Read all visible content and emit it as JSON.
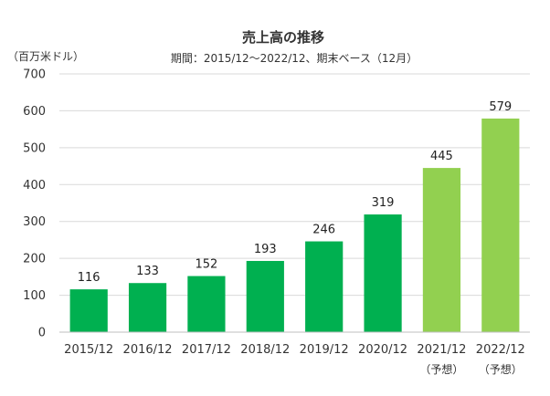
{
  "chart_data": {
    "type": "bar",
    "title": "売上高の推移",
    "subtitle": "期間：2015/12～2022/12、期末ベース（12月）",
    "unit_label": "（百万米ドル）",
    "categories": [
      "2015/12",
      "2016/12",
      "2017/12",
      "2018/12",
      "2019/12",
      "2020/12",
      "2021/12",
      "2022/12"
    ],
    "category_notes": [
      "",
      "",
      "",
      "",
      "",
      "",
      "（予想）",
      "（予想）"
    ],
    "values": [
      116,
      133,
      152,
      193,
      246,
      319,
      445,
      579
    ],
    "value_labels": [
      "116",
      "133",
      "152",
      "193",
      "246",
      "319",
      "445",
      "579"
    ],
    "bar_colors": [
      "#00b050",
      "#00b050",
      "#00b050",
      "#00b050",
      "#00b050",
      "#00b050",
      "#92d050",
      "#92d050"
    ],
    "ylim": [
      0,
      700
    ],
    "yticks": [
      0,
      100,
      200,
      300,
      400,
      500,
      600,
      700
    ],
    "ytick_labels": [
      "0",
      "100",
      "200",
      "300",
      "400",
      "500",
      "600",
      "700"
    ],
    "grid": true
  }
}
